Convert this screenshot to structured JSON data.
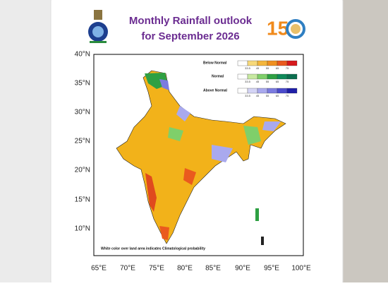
{
  "header": {
    "title_line1": "Monthly Rainfall outlook",
    "title_line2": "for September 2026",
    "logo_text": "15"
  },
  "map": {
    "lat_labels": [
      "40°N",
      "35°N",
      "30°N",
      "25°N",
      "20°N",
      "15°N",
      "10°N"
    ],
    "lon_labels": [
      "65°E",
      "70°E",
      "75°E",
      "80°E",
      "85°E",
      "90°E",
      "95°E",
      "100°E"
    ],
    "note": "White color over land area indicates Climatological probability"
  },
  "legend": {
    "groups": [
      "Below Normal",
      "Normal",
      "Above Normal"
    ],
    "ticks": [
      "33.5",
      "45",
      "55",
      "65",
      "75"
    ]
  }
}
